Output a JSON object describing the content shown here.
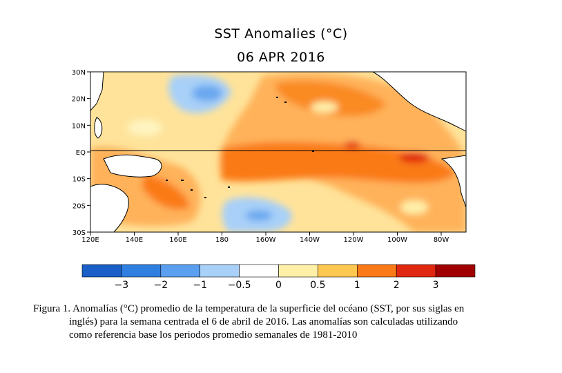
{
  "title": "SST Anomalies (°C)",
  "date": "06 APR 2016",
  "lat_labels": [
    "30N",
    "20N",
    "10N",
    "EQ",
    "10S",
    "20S",
    "30S"
  ],
  "lon_labels": [
    "120E",
    "140E",
    "160E",
    "180",
    "160W",
    "140W",
    "120W",
    "100W",
    "80W"
  ],
  "colorbar": {
    "labels": [
      "−3",
      "−2",
      "−1",
      "−0.5",
      "0",
      "0.5",
      "1",
      "2",
      "3"
    ],
    "colors": [
      "#1a5fc8",
      "#2e7fe0",
      "#5a9ff0",
      "#a8d0f8",
      "#ffffff",
      "#fff0a8",
      "#ffc850",
      "#fa7a18",
      "#e02810",
      "#a00000"
    ]
  },
  "caption": {
    "line1": "Figura 1. Anomalías (°C) promedio de la temperatura de la superficie del océano (SST, por sus siglas en",
    "line2": "inglés) para la semana centrada el 6 de abril de 2016. Las anomalías son calculadas utilizando",
    "line3": "como referencia base los periodos promedio semanales de 1981-2010"
  }
}
